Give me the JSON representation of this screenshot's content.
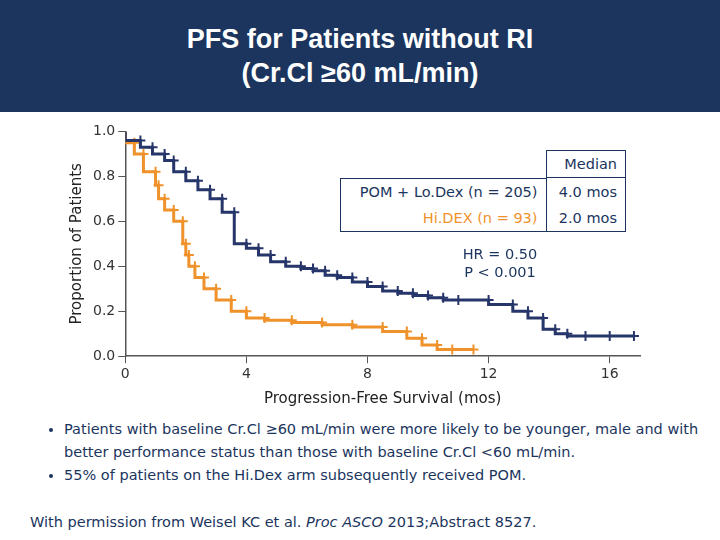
{
  "header": {
    "title": [
      "PFS for Patients without RI",
      "(Cr.Cl ≥60 mL/min)"
    ]
  },
  "chart_data": {
    "type": "line",
    "x_label": "Progression-Free Survival (mos)",
    "y_label": "Proportion of Patients",
    "xlim": [
      0,
      17
    ],
    "xticks": [
      0,
      4,
      8,
      12,
      16
    ],
    "ylim": [
      0,
      1
    ],
    "yticks": [
      {
        "value": 0,
        "label": "0.0"
      },
      {
        "value": 0.2,
        "label": "0.2"
      },
      {
        "value": 0.4,
        "label": "0.4"
      },
      {
        "value": 0.6,
        "label": "0.6"
      },
      {
        "value": 0.8,
        "label": "0.8"
      },
      {
        "value": 1,
        "label": "1.0"
      }
    ],
    "grid": false,
    "legend_title": "Median",
    "annotations": [
      "HR = 0.50",
      "P < 0.001"
    ],
    "series": [
      {
        "name": "POM + Lo.Dex (n = 205)",
        "median_label": "4.0 mos",
        "color": "#27366a",
        "marker": "cross",
        "line_style": "step",
        "x": [
          0,
          0.5,
          0.9,
          1.3,
          1.6,
          2.0,
          2.4,
          2.8,
          3.2,
          3.6,
          4.0,
          4.4,
          4.8,
          5.3,
          5.8,
          6.2,
          6.6,
          7.0,
          7.5,
          8.0,
          8.5,
          9.0,
          9.5,
          10.0,
          10.5,
          11.0,
          12.0,
          12.8,
          13.3,
          13.8,
          14.2,
          14.6,
          15.2,
          16.0,
          16.8
        ],
        "values": [
          1.0,
          0.96,
          0.93,
          0.9,
          0.87,
          0.82,
          0.78,
          0.74,
          0.7,
          0.64,
          0.5,
          0.48,
          0.45,
          0.42,
          0.4,
          0.39,
          0.38,
          0.36,
          0.35,
          0.33,
          0.31,
          0.29,
          0.28,
          0.27,
          0.26,
          0.25,
          0.25,
          0.23,
          0.2,
          0.17,
          0.12,
          0.1,
          0.09,
          0.09,
          0.09
        ]
      },
      {
        "name": "Hi.DEX (n = 93)",
        "median_label": "2.0 mos",
        "color": "#f0922b",
        "marker": "cross",
        "line_style": "step",
        "x": [
          0,
          0.3,
          0.6,
          1.0,
          1.1,
          1.3,
          1.6,
          1.9,
          2.0,
          2.1,
          2.3,
          2.6,
          3.0,
          3.5,
          4.0,
          4.6,
          5.5,
          6.5,
          7.5,
          8.5,
          9.3,
          9.8,
          10.3,
          10.8,
          11.5
        ],
        "values": [
          1.0,
          0.95,
          0.9,
          0.82,
          0.76,
          0.7,
          0.65,
          0.6,
          0.5,
          0.45,
          0.4,
          0.35,
          0.3,
          0.25,
          0.2,
          0.17,
          0.16,
          0.15,
          0.14,
          0.13,
          0.11,
          0.08,
          0.05,
          0.03,
          0.03
        ]
      }
    ]
  },
  "bullets": [
    "Patients with baseline Cr.Cl ≥60 mL/min were more likely to be younger, male and with better performance status than those with baseline Cr.Cl <60 mL/min.",
    "55% of patients on the Hi.Dex arm subsequently received POM."
  ],
  "citation": {
    "before": "With permission from Weisel KC et al. ",
    "italic": "Proc ASCO",
    "after": " 2013;Abstract 8527."
  }
}
